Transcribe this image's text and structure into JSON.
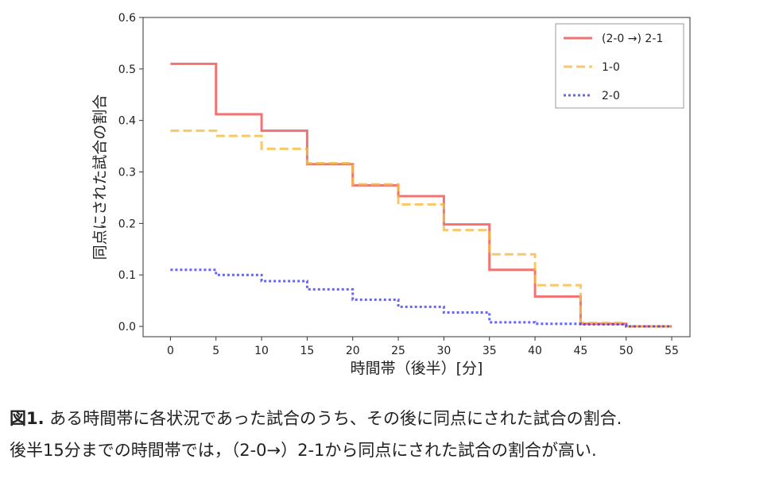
{
  "chart_data": {
    "type": "line",
    "step": true,
    "xlabel": "時間帯（後半）[分]",
    "ylabel": "同点にされた試合の割合",
    "xlim": [
      -3,
      57
    ],
    "ylim": [
      -0.02,
      0.6
    ],
    "xticks": [
      0,
      5,
      10,
      15,
      20,
      25,
      30,
      35,
      40,
      45,
      50,
      55
    ],
    "yticks": [
      0.0,
      0.1,
      0.2,
      0.3,
      0.4,
      0.5,
      0.6
    ],
    "ytick_labels": [
      "0.0",
      "0.1",
      "0.2",
      "0.3",
      "0.4",
      "0.5",
      "0.6"
    ],
    "grid": false,
    "legend_position": "top-right",
    "series": [
      {
        "name": "(2-0 →) 2-1",
        "color": "#f05050",
        "style": "solid",
        "x": [
          0,
          5,
          10,
          15,
          20,
          25,
          30,
          35,
          40,
          45,
          50,
          55
        ],
        "y": [
          0.51,
          0.412,
          0.38,
          0.315,
          0.274,
          0.253,
          0.198,
          0.11,
          0.058,
          0.005,
          0.0,
          0.0
        ]
      },
      {
        "name": "1-0",
        "color": "#f5b942",
        "style": "dashed",
        "x": [
          0,
          5,
          10,
          15,
          20,
          25,
          30,
          35,
          40,
          45,
          50,
          55
        ],
        "y": [
          0.38,
          0.37,
          0.345,
          0.317,
          0.276,
          0.237,
          0.187,
          0.14,
          0.08,
          0.007,
          0.0,
          0.0
        ]
      },
      {
        "name": "2-0",
        "color": "#4040f0",
        "style": "dotted",
        "x": [
          0,
          5,
          10,
          15,
          20,
          25,
          30,
          35,
          40,
          45,
          50,
          55
        ],
        "y": [
          0.11,
          0.1,
          0.088,
          0.072,
          0.052,
          0.038,
          0.027,
          0.008,
          0.005,
          0.004,
          0.0,
          0.0
        ]
      }
    ]
  },
  "caption": {
    "fig_label": "図1.",
    "line1": " ある時間帯に各状況であった試合のうち、その後に同点にされた試合の割合.",
    "line2": "後半15分までの時間帯では，（2-0→）2-1から同点にされた試合の割合が高い."
  }
}
